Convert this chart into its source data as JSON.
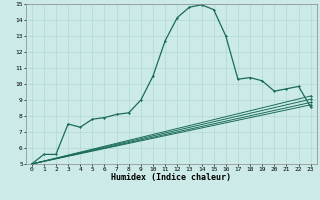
{
  "title": "",
  "xlabel": "Humidex (Indice chaleur)",
  "ylabel": "",
  "bg_color": "#cceae7",
  "line_color": "#1a6b5a",
  "grid_color": "#aad4cf",
  "xlim": [
    -0.5,
    23.5
  ],
  "ylim": [
    5,
    15
  ],
  "xticks": [
    0,
    1,
    2,
    3,
    4,
    5,
    6,
    7,
    8,
    9,
    10,
    11,
    12,
    13,
    14,
    15,
    16,
    17,
    18,
    19,
    20,
    21,
    22,
    23
  ],
  "yticks": [
    5,
    6,
    7,
    8,
    9,
    10,
    11,
    12,
    13,
    14,
    15
  ],
  "main_curve_x": [
    0,
    1,
    2,
    3,
    4,
    5,
    6,
    7,
    8,
    9,
    10,
    11,
    12,
    13,
    14,
    15,
    16,
    17,
    18,
    19,
    20,
    21,
    22,
    23
  ],
  "main_curve_y": [
    5.0,
    5.6,
    5.6,
    7.5,
    7.3,
    7.8,
    7.9,
    8.1,
    8.2,
    9.0,
    10.5,
    12.7,
    14.15,
    14.8,
    14.95,
    14.65,
    13.0,
    10.3,
    10.4,
    10.2,
    9.55,
    9.7,
    9.85,
    8.55
  ],
  "line2_x": [
    0,
    23
  ],
  "line2_y": [
    5.0,
    8.7
  ],
  "line3_x": [
    0,
    23
  ],
  "line3_y": [
    5.0,
    8.85
  ],
  "line4_x": [
    0,
    23
  ],
  "line4_y": [
    5.0,
    9.05
  ],
  "line5_x": [
    0,
    23
  ],
  "line5_y": [
    5.0,
    9.25
  ],
  "tick_fontsize": 4.5,
  "xlabel_fontsize": 6.0
}
